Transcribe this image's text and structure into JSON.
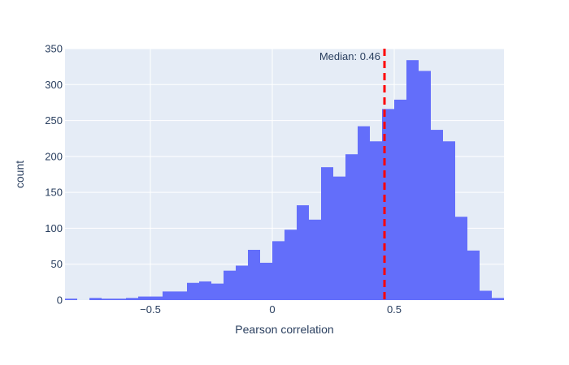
{
  "chart_data": {
    "type": "histogram",
    "xlabel": "Pearson correlation",
    "ylabel": "count",
    "xlim": [
      -0.85,
      0.95
    ],
    "ylim": [
      0,
      350
    ],
    "bin_width": 0.05,
    "bin_start": -0.85,
    "counts": [
      2,
      0,
      3,
      2,
      2,
      3,
      5,
      5,
      12,
      12,
      24,
      26,
      23,
      41,
      48,
      70,
      52,
      82,
      98,
      132,
      112,
      185,
      172,
      203,
      242,
      221,
      266,
      279,
      334,
      319,
      237,
      221,
      116,
      69,
      13,
      3
    ],
    "x_ticks": [
      -0.5,
      0,
      0.5
    ],
    "x_tick_labels": [
      "−0.5",
      "0",
      "0.5"
    ],
    "y_ticks": [
      0,
      50,
      100,
      150,
      200,
      250,
      300,
      350
    ],
    "y_tick_labels": [
      "0",
      "50",
      "100",
      "150",
      "200",
      "250",
      "300",
      "350"
    ],
    "median": 0.46,
    "median_label": "Median: 0.46",
    "colors": {
      "bar": "#636efa",
      "median_line": "#ff0000",
      "plot_bg": "#e5ecf6",
      "grid": "#ffffff",
      "text": "#2a3f5f"
    },
    "grid": true
  }
}
